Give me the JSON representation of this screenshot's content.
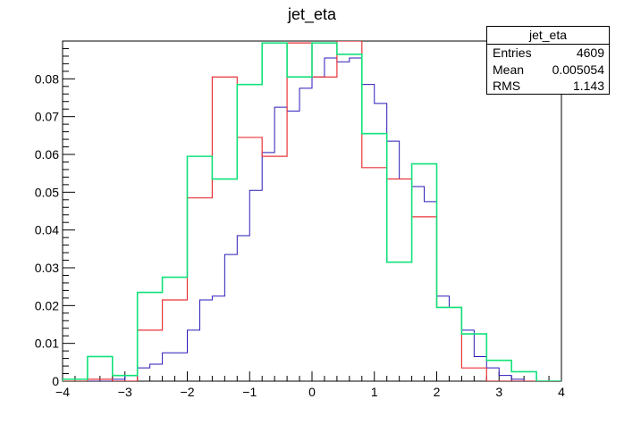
{
  "chart_data": {
    "type": "line",
    "title": "jet_eta",
    "xlabel": "",
    "ylabel": "",
    "xlim": [
      -4,
      4
    ],
    "ylim": [
      0,
      0.09
    ],
    "x_ticks": [
      "−4",
      "−3",
      "−2",
      "−1",
      "0",
      "1",
      "2",
      "3",
      "4"
    ],
    "y_ticks": [
      "0",
      "0.01",
      "0.02",
      "0.03",
      "0.04",
      "0.05",
      "0.06",
      "0.07",
      "0.08"
    ],
    "bin_edges": [
      -4.0,
      -3.6,
      -3.2,
      -2.8,
      -2.4,
      -2.0,
      -1.6,
      -1.2,
      -0.8,
      -0.4,
      0.0,
      0.4,
      0.8,
      1.2,
      1.6,
      2.0,
      2.4,
      2.8,
      3.2,
      3.6,
      4.0
    ],
    "series": [
      {
        "color": "#2a1ab8",
        "step": 0.2,
        "values": [
          0.0,
          0.0,
          0.0,
          0.0,
          0.0,
          0.0,
          0.0,
          0.0,
          0.0,
          0.0,
          0.0,
          0.0,
          0.0,
          0.0,
          0.0,
          0.0,
          0.0,
          0.0,
          0.0,
          0.0
        ]
      },
      {
        "color": "#e8343a",
        "values": [
          0.0,
          0.0005,
          0.0,
          0.0135,
          0.0215,
          0.0485,
          0.0805,
          0.0645,
          0.0595,
          0.0895,
          0.0805,
          0.0905,
          0.0565,
          0.0535,
          0.0435,
          0.0195,
          0.0035,
          0.0,
          0.0,
          0.0
        ]
      },
      {
        "color": "#11e27a",
        "values": [
          0.0005,
          0.0065,
          0.0015,
          0.0235,
          0.0275,
          0.0595,
          0.0535,
          0.0785,
          0.0895,
          0.0805,
          0.0895,
          0.0865,
          0.0655,
          0.0315,
          0.0575,
          0.0195,
          0.0125,
          0.0055,
          0.0025,
          0.0
        ]
      }
    ],
    "blue_fine": {
      "color": "#2a1ab8",
      "bin_width": 0.2,
      "start": -4.0,
      "values": [
        0.0,
        0.0,
        0.0,
        0.0,
        0.0005,
        0.0015,
        0.0035,
        0.0045,
        0.0075,
        0.0075,
        0.0135,
        0.0215,
        0.0225,
        0.0335,
        0.0385,
        0.0505,
        0.0605,
        0.0725,
        0.0715,
        0.0775,
        0.0805,
        0.0855,
        0.0845,
        0.0855,
        0.0785,
        0.0735,
        0.0635,
        0.0535,
        0.0515,
        0.0475,
        0.0225,
        0.0195,
        0.0135,
        0.0065,
        0.0035,
        0.0015,
        0.0005,
        0.0,
        0.0,
        0.0
      ]
    },
    "grid": false,
    "legend": "top-right"
  },
  "stats": {
    "title": "jet_eta",
    "entries_label": "Entries",
    "entries_value": "4609",
    "mean_label": "Mean",
    "mean_value": "0.005054",
    "rms_label": "RMS",
    "rms_value": "1.143"
  }
}
